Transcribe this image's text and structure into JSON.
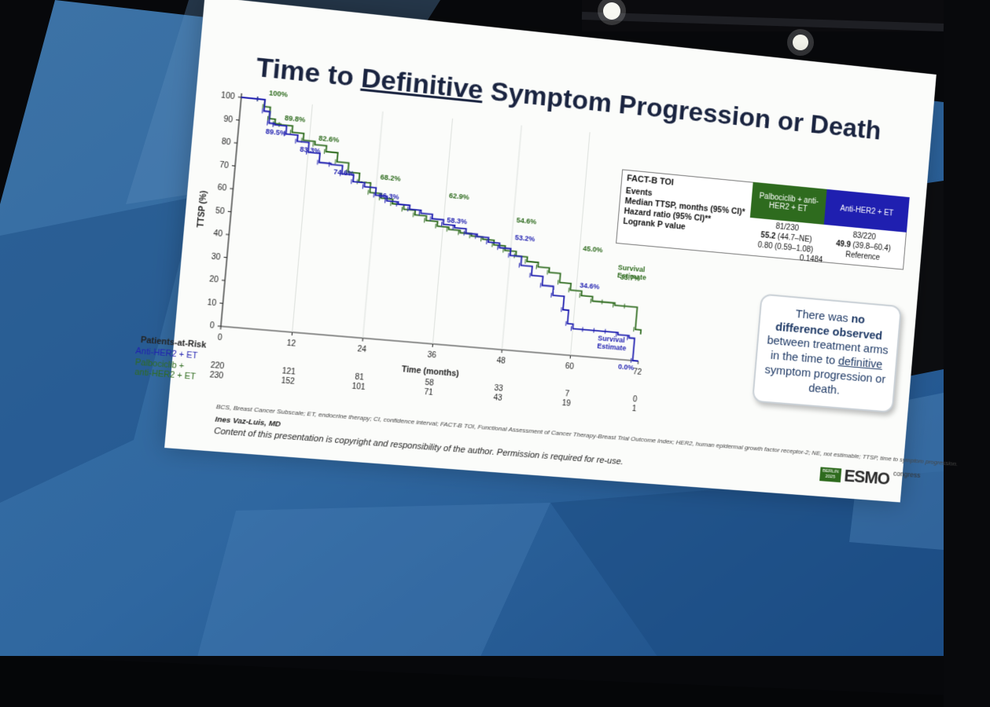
{
  "slide": {
    "title_parts": [
      "Time to ",
      "Definitive",
      " Symptom Progression or Death"
    ],
    "table": {
      "header_label": "FACT-B TOI",
      "arm_a_header": "Palbociclib + anti-HER2 + ET",
      "arm_b_header": "Anti-HER2 + ET",
      "rows": [
        {
          "label": "Events",
          "a": "81/230",
          "b": "83/220"
        },
        {
          "label": "Median TTSP, months (95% CI)*",
          "a_bold": "55.2",
          "a_rest": " (44.7–NE)",
          "b_bold": "49.9",
          "b_rest": " (39.8–60.4)"
        },
        {
          "label": "Hazard ratio (95% CI)**",
          "a": "0.80 (0.59–1.08)",
          "b": "Reference"
        },
        {
          "label": "Logrank P value",
          "a": "0.1484",
          "b": ""
        }
      ]
    },
    "note": {
      "text_1": "There was ",
      "bold": "no difference observed",
      "text_2": " between treatment arms in the time to ",
      "underline": "definitive",
      "text_3": " symptom progression or death."
    },
    "risk_table": {
      "title": "Patients-at-Risk",
      "rows": [
        {
          "label": "Anti-HER2 + ET",
          "values": [
            "220",
            "121",
            "81",
            "58",
            "33",
            "7",
            "0"
          ],
          "color": "#1f1fb0"
        },
        {
          "label_1": "Palbociclib +",
          "label_2": "anti-HER2 + ET",
          "values": [
            "230",
            "152",
            "101",
            "71",
            "43",
            "19",
            "1"
          ],
          "color": "#2e6b1e"
        }
      ]
    },
    "footnote": "BCS, Breast Cancer Subscale; ET, endocrine therapy; CI, confidence interval; FACT-B TOI, Functional Assessment of Cancer Therapy-Breast Trial Outcome Index; HER2, human epidermal growth factor receptor-2; NE, not estimable; TTSP, time to symptom progression.",
    "author": "Ines Vaz-Luis, MD",
    "copyright": "Content of this presentation is copyright and responsibility of the author. Permission is required for re-use.",
    "logo": {
      "city_1": "BERLIN",
      "city_2": "2025",
      "word": "ESMO",
      "sub": "congress"
    }
  },
  "chart_data": {
    "type": "line",
    "step": true,
    "xlabel": "Time (months)",
    "ylabel": "TTSP (%)",
    "xlim": [
      0,
      72
    ],
    "ylim": [
      0,
      100
    ],
    "xticks": [
      0,
      12,
      24,
      36,
      48,
      60,
      72
    ],
    "yticks": [
      0,
      10,
      20,
      30,
      40,
      50,
      60,
      70,
      80,
      90,
      100
    ],
    "colors": {
      "green": "#2e6b1e",
      "blue": "#1f1fb0"
    },
    "series": [
      {
        "color": "#2e6b1e",
        "x": [
          0,
          3,
          4,
          5,
          6,
          7,
          9,
          11,
          13,
          15,
          17,
          19,
          21,
          23,
          25,
          27,
          29,
          31,
          33,
          35,
          37,
          39,
          41,
          43,
          45,
          47,
          49,
          51,
          53,
          55,
          57,
          59,
          61,
          63,
          65,
          67,
          69,
          71,
          72
        ],
        "y": [
          100,
          100,
          97,
          92,
          90,
          89.8,
          87,
          84,
          82.6,
          80,
          76,
          72,
          68.2,
          64,
          62,
          60,
          58,
          56,
          54,
          52,
          51,
          50,
          49,
          48,
          46,
          44,
          42,
          40,
          38,
          36,
          32,
          29,
          27,
          25,
          25,
          24,
          24,
          14,
          12
        ],
        "labels": [
          {
            "x": 4,
            "y": 100,
            "text": "100%"
          },
          {
            "x": 7,
            "y": 89.8,
            "text": "89.8%"
          },
          {
            "x": 13,
            "y": 82.6,
            "text": "82.6%"
          },
          {
            "x": 24,
            "y": 68.2,
            "text": "68.2%"
          },
          {
            "x": 36,
            "y": 62.9,
            "text": "62.9%"
          },
          {
            "x": 48,
            "y": 54.6,
            "text": "54.6%"
          },
          {
            "x": 60,
            "y": 45.0,
            "text": "45.0%"
          },
          {
            "x": 67,
            "y": 33.7,
            "text": "33.7%"
          }
        ]
      },
      {
        "color": "#1f1fb0",
        "x": [
          0,
          3,
          4,
          5,
          6,
          8,
          10,
          12,
          14,
          16,
          18,
          20,
          22,
          24,
          26,
          28,
          30,
          32,
          34,
          36,
          38,
          40,
          42,
          44,
          46,
          48,
          50,
          52,
          54,
          56,
          58,
          59,
          60,
          62,
          64,
          66,
          68,
          70,
          71,
          72
        ],
        "y": [
          100,
          100,
          95,
          90,
          89.5,
          86,
          83.3,
          79,
          75,
          74.6,
          71,
          68,
          66.3,
          63,
          61,
          60,
          58.3,
          57,
          55,
          53,
          52,
          50,
          49,
          47,
          45,
          42,
          38,
          34,
          30,
          26,
          20,
          14,
          12,
          12,
          12,
          12,
          11,
          10,
          0,
          0
        ],
        "labels": [
          {
            "x": 4,
            "y": 89.5,
            "text": "89.5%"
          },
          {
            "x": 10,
            "y": 83.3,
            "text": "83.3%"
          },
          {
            "x": 16,
            "y": 74.6,
            "text": "74.6%"
          },
          {
            "x": 24,
            "y": 66.3,
            "text": "66.3%"
          },
          {
            "x": 36,
            "y": 58.3,
            "text": "58.3%"
          },
          {
            "x": 48,
            "y": 53.2,
            "text": "53.2%"
          },
          {
            "x": 60,
            "y": 34.6,
            "text": "34.6%"
          },
          {
            "x": 68,
            "y": 0,
            "text": "0.0%"
          }
        ]
      }
    ],
    "annotations": [
      {
        "text_1": "Survival",
        "text_2": "Estimate",
        "color": "#2e6b1e"
      },
      {
        "text_1": "Survival",
        "text_2": "Estimate",
        "color": "#1f1fb0"
      }
    ]
  }
}
